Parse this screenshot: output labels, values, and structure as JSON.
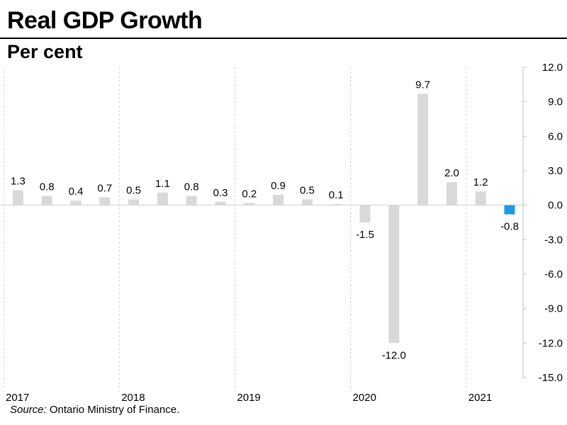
{
  "title": "Real GDP Growth",
  "subtitle": "Per cent",
  "source_label": "Source:",
  "source_text": " Ontario Ministry of Finance.",
  "chart_data": {
    "type": "bar",
    "title": "Real GDP Growth",
    "ylabel": "Per cent",
    "xlabel": "",
    "ylim": [
      -15.0,
      12.0
    ],
    "yticks": [
      12.0,
      9.0,
      6.0,
      3.0,
      0.0,
      -3.0,
      -6.0,
      -9.0,
      -12.0,
      -15.0
    ],
    "ytick_labels": [
      "12.0",
      "9.0",
      "6.0",
      "3.0",
      "0.0",
      "-3.0",
      "-6.0",
      "-9.0",
      "-12.0",
      "-15.0"
    ],
    "year_labels": [
      "2017",
      "2018",
      "2019",
      "2020",
      "2021"
    ],
    "categories": [
      "2017 Q1",
      "2017 Q2",
      "2017 Q3",
      "2017 Q4",
      "2018 Q1",
      "2018 Q2",
      "2018 Q3",
      "2018 Q4",
      "2019 Q1",
      "2019 Q2",
      "2019 Q3",
      "2019 Q4",
      "2020 Q1",
      "2020 Q2",
      "2020 Q3",
      "2020 Q4",
      "2021 Q1",
      "2021 Q2"
    ],
    "values": [
      1.3,
      0.8,
      0.4,
      0.7,
      0.5,
      1.1,
      0.8,
      0.3,
      0.2,
      0.9,
      0.5,
      0.1,
      -1.5,
      -12.0,
      9.7,
      2.0,
      1.2,
      -0.8
    ],
    "value_labels": [
      "1.3",
      "0.8",
      "0.4",
      "0.7",
      "0.5",
      "1.1",
      "0.8",
      "0.3",
      "0.2",
      "0.9",
      "0.5",
      "0.1",
      "-1.5",
      "-12.0",
      "9.7",
      "2.0",
      "1.2",
      "-0.8"
    ],
    "highlight_index": 17,
    "bar_color": "#d9d9d9",
    "highlight_color": "#1e9be6",
    "grid": false
  }
}
